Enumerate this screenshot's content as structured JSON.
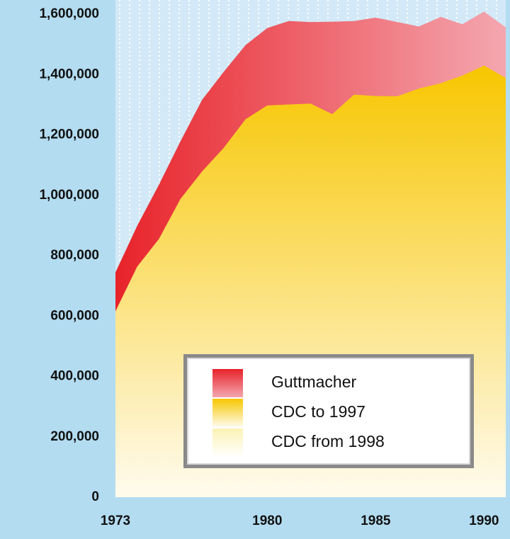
{
  "chart_data": {
    "type": "area",
    "x": [
      1973,
      1974,
      1975,
      1976,
      1977,
      1978,
      1979,
      1980,
      1981,
      1982,
      1983,
      1984,
      1985,
      1986,
      1987,
      1988,
      1989,
      1990,
      1991
    ],
    "series": [
      {
        "name": "Guttmacher",
        "color": "#e8232a",
        "values": [
          744600,
          898600,
          1034200,
          1179300,
          1316700,
          1409600,
          1497700,
          1553900,
          1577300,
          1573900,
          1575000,
          1577200,
          1588600,
          1574000,
          1559100,
          1590800,
          1566900,
          1608600,
          1556500
        ]
      },
      {
        "name": "CDC to 1997",
        "color": "#f7c600",
        "values": [
          615800,
          763500,
          854900,
          988300,
          1079400,
          1157800,
          1251900,
          1297600,
          1300800,
          1303900,
          1268900,
          1333500,
          1328600,
          1328100,
          1353700,
          1371300,
          1396700,
          1429600,
          1388900
        ]
      },
      {
        "name": "CDC from 1998",
        "color": "#fcf2b4",
        "values": [
          null,
          null,
          null,
          null,
          null,
          null,
          null,
          null,
          null,
          null,
          null,
          null,
          null,
          null,
          null,
          null,
          null,
          null,
          null
        ]
      }
    ],
    "xlim": [
      1973,
      1991
    ],
    "xticks": [
      1973,
      1980,
      1985,
      1990
    ],
    "ylim": [
      0,
      1600000
    ],
    "yticks": [
      0,
      {
        "value": 200000,
        "label": "200,000"
      },
      {
        "value": 400000,
        "label": "400,000"
      },
      {
        "value": 600000,
        "label": "600,000"
      },
      {
        "value": 800000,
        "label": "800,000"
      },
      {
        "value": 1000000,
        "label": "1,000,000"
      },
      {
        "value": 1200000,
        "label": "1,200,000"
      },
      {
        "value": 1400000,
        "label": "1,400,000"
      },
      {
        "value": 1600000,
        "label": "1,600,000"
      }
    ],
    "grid": false,
    "legend": "lower-right"
  }
}
